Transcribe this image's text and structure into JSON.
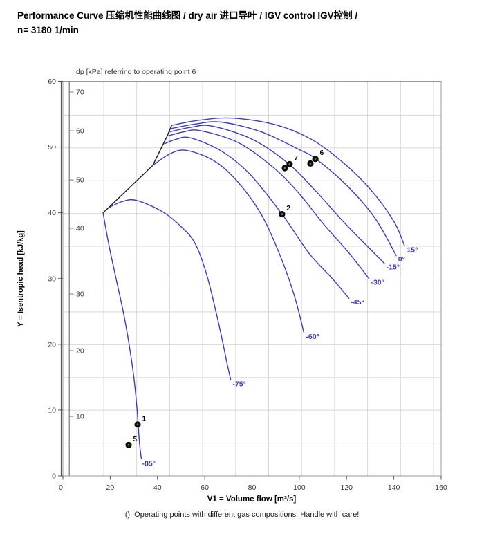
{
  "title": {
    "line1": "Performance Curve 压缩机性能曲线图 / dry air 进口导叶 / IGV control IGV控制 /",
    "line2": "n= 3180 1/min"
  },
  "footer_note": "(): Operating points with different gas compositions. Handle with care!",
  "colors": {
    "curve_blue": "#3d3dbb",
    "surge_black": "#1a1a1a",
    "grid_gray": "#d8d8d8",
    "frame_gray": "#9a9a9a",
    "axis_dark": "#555555",
    "tick_text": "#3a3a3a",
    "dot_black": "#0a0a0a",
    "dot_green": "#2fa12f"
  },
  "chart_data": {
    "type": "line",
    "secondary_axis_note": "dp [kPa] referring to operating point 6",
    "xlabel": "V1 = Volume flow [m³/s]",
    "ylabel": "Y = Isentropic head [kJ/kg]",
    "xlim": [
      0,
      160
    ],
    "ylim": [
      0,
      60
    ],
    "x_ticks": [
      0,
      20,
      40,
      60,
      80,
      100,
      120,
      140,
      160
    ],
    "y_ticks": [
      0,
      10,
      20,
      30,
      40,
      50,
      60
    ],
    "dp_ticks": [
      {
        "dp": 10,
        "head_equiv": 9.04
      },
      {
        "dp": 20,
        "head_equiv": 19.04
      },
      {
        "dp": 30,
        "head_equiv": 27.66
      },
      {
        "dp": 40,
        "head_equiv": 37.65
      },
      {
        "dp": 50,
        "head_equiv": 45.01
      },
      {
        "dp": 60,
        "head_equiv": 52.48
      },
      {
        "dp": 70,
        "head_equiv": 58.37
      }
    ],
    "surge_line": [
      [
        17,
        40
      ],
      [
        38,
        47.2
      ],
      [
        44,
        51.6
      ],
      [
        46,
        53.3
      ]
    ],
    "series": [
      {
        "name": "15°",
        "label_at": [
          145.5,
          34.0
        ],
        "points": [
          [
            46,
            53.3
          ],
          [
            58,
            54.1
          ],
          [
            72,
            54.4
          ],
          [
            90,
            53.4
          ],
          [
            105,
            51.2
          ],
          [
            118,
            47.8
          ],
          [
            130,
            43.6
          ],
          [
            140,
            38.7
          ],
          [
            144.5,
            35.0
          ]
        ]
      },
      {
        "name": "0°",
        "label_at": [
          141.8,
          32.6
        ],
        "points": [
          [
            45.5,
            52.8
          ],
          [
            56,
            53.5
          ],
          [
            67,
            53.8
          ],
          [
            84,
            52.3
          ],
          [
            100,
            49.6
          ],
          [
            107,
            48.2
          ],
          [
            120,
            44.2
          ],
          [
            132,
            39.2
          ],
          [
            141,
            33.5
          ]
        ]
      },
      {
        "name": "-15°",
        "label_at": [
          136.8,
          31.4
        ],
        "points": [
          [
            45,
            52.3
          ],
          [
            54,
            53.0
          ],
          [
            63,
            53.2
          ],
          [
            80,
            51.2
          ],
          [
            95,
            47.6
          ],
          [
            107,
            43.3
          ],
          [
            118,
            38.9
          ],
          [
            128,
            35.2
          ],
          [
            136,
            32.3
          ]
        ]
      },
      {
        "name": "-30°",
        "label_at": [
          130.3,
          29.1
        ],
        "points": [
          [
            44.5,
            51.7
          ],
          [
            51,
            52.3
          ],
          [
            58,
            52.5
          ],
          [
            74,
            50.7
          ],
          [
            89,
            46.9
          ],
          [
            100,
            42.9
          ],
          [
            110,
            38.4
          ],
          [
            121,
            33.9
          ],
          [
            129.5,
            30.0
          ]
        ]
      },
      {
        "name": "-45°",
        "label_at": [
          121.8,
          26.1
        ],
        "points": [
          [
            43,
            50.5
          ],
          [
            48,
            51.2
          ],
          [
            54,
            51.4
          ],
          [
            67,
            49.4
          ],
          [
            79,
            45.9
          ],
          [
            92.7,
            39.8
          ],
          [
            104,
            33.9
          ],
          [
            114,
            30.0
          ],
          [
            121,
            27.0
          ]
        ]
      },
      {
        "name": "-60°",
        "label_at": [
          102.8,
          20.8
        ],
        "points": [
          [
            38,
            47.2
          ],
          [
            45,
            48.9
          ],
          [
            52,
            49.5
          ],
          [
            64,
            47.9
          ],
          [
            74,
            44.7
          ],
          [
            84,
            39.7
          ],
          [
            92,
            33.4
          ],
          [
            98,
            27.3
          ],
          [
            102,
            21.7
          ]
        ]
      },
      {
        "name": "-75°",
        "label_at": [
          71.8,
          13.6
        ],
        "points": [
          [
            19.5,
            40.8
          ],
          [
            25,
            41.7
          ],
          [
            31,
            41.9
          ],
          [
            42,
            40.2
          ],
          [
            50,
            37.9
          ],
          [
            56,
            35.3
          ],
          [
            61,
            30.4
          ],
          [
            66,
            23.0
          ],
          [
            69.5,
            17.0
          ],
          [
            71,
            14.6
          ]
        ]
      },
      {
        "name": "-85°",
        "label_at": [
          33.5,
          1.5
        ],
        "points": [
          [
            17,
            40
          ],
          [
            19.5,
            35
          ],
          [
            22.5,
            30
          ],
          [
            25.5,
            25
          ],
          [
            28,
            20
          ],
          [
            30,
            15
          ],
          [
            31.4,
            10
          ],
          [
            32.4,
            5
          ],
          [
            33.2,
            2.6
          ]
        ]
      }
    ],
    "operating_points": [
      {
        "label": "1",
        "x": 31.6,
        "y": 7.8
      },
      {
        "label": "5",
        "x": 27.8,
        "y": 4.7
      },
      {
        "label": "2",
        "x": 92.7,
        "y": 39.8
      },
      {
        "label": "",
        "x": 93.9,
        "y": 46.8
      },
      {
        "label": "7",
        "x": 95.9,
        "y": 47.4
      },
      {
        "label": "",
        "x": 104.7,
        "y": 47.5
      },
      {
        "label": "6",
        "x": 106.8,
        "y": 48.2
      }
    ]
  }
}
